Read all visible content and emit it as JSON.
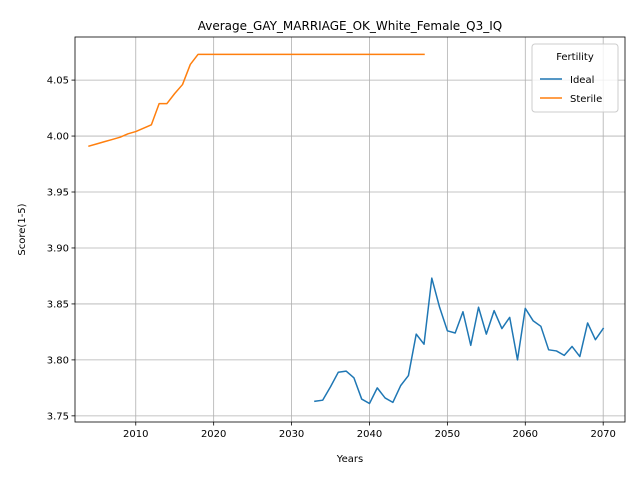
{
  "chart_data": {
    "type": "line",
    "title": "Average_GAY_MARRIAGE_OK_White_Female_Q3_IQ",
    "xlabel": "Years",
    "ylabel": "Score(1-5)",
    "xlim": [
      2002.2,
      2072.8
    ],
    "ylim": [
      3.7445,
      4.0885
    ],
    "xticks": [
      2010,
      2020,
      2030,
      2040,
      2050,
      2060,
      2070
    ],
    "yticks": [
      3.75,
      3.8,
      3.85,
      3.9,
      3.95,
      4.0,
      4.05
    ],
    "ytick_labels": [
      "3.75",
      "3.80",
      "3.85",
      "3.90",
      "3.95",
      "4.00",
      "4.05"
    ],
    "grid": true,
    "legend": {
      "title": "Fertility",
      "position": "top-right"
    },
    "series": [
      {
        "name": "Ideal",
        "color": "#1f77b4",
        "x": [
          2033,
          2034,
          2035,
          2036,
          2037,
          2038,
          2039,
          2040,
          2041,
          2042,
          2043,
          2044,
          2045,
          2046,
          2047,
          2048,
          2049,
          2050,
          2051,
          2052,
          2053,
          2054,
          2055,
          2056,
          2057,
          2058,
          2059,
          2060,
          2061,
          2062,
          2063,
          2064,
          2065,
          2066,
          2067,
          2068,
          2069,
          2070
        ],
        "y": [
          3.763,
          3.764,
          3.776,
          3.789,
          3.79,
          3.784,
          3.765,
          3.761,
          3.775,
          3.766,
          3.762,
          3.777,
          3.786,
          3.823,
          3.814,
          3.873,
          3.847,
          3.826,
          3.824,
          3.843,
          3.813,
          3.847,
          3.823,
          3.844,
          3.828,
          3.838,
          3.8,
          3.846,
          3.835,
          3.83,
          3.809,
          3.808,
          3.804,
          3.812,
          3.803,
          3.833,
          3.818,
          3.828
        ]
      },
      {
        "name": "Sterile",
        "color": "#ff7f0e",
        "x": [
          2004,
          2005,
          2006,
          2007,
          2008,
          2009,
          2010,
          2011,
          2012,
          2013,
          2014,
          2015,
          2016,
          2017,
          2018,
          2019,
          2020,
          2025,
          2030,
          2035,
          2040,
          2045,
          2047
        ],
        "y": [
          3.991,
          3.993,
          3.995,
          3.997,
          3.999,
          4.002,
          4.004,
          4.007,
          4.01,
          4.029,
          4.029,
          4.038,
          4.046,
          4.064,
          4.073,
          4.073,
          4.073,
          4.073,
          4.073,
          4.073,
          4.073,
          4.073,
          4.073
        ]
      }
    ]
  }
}
